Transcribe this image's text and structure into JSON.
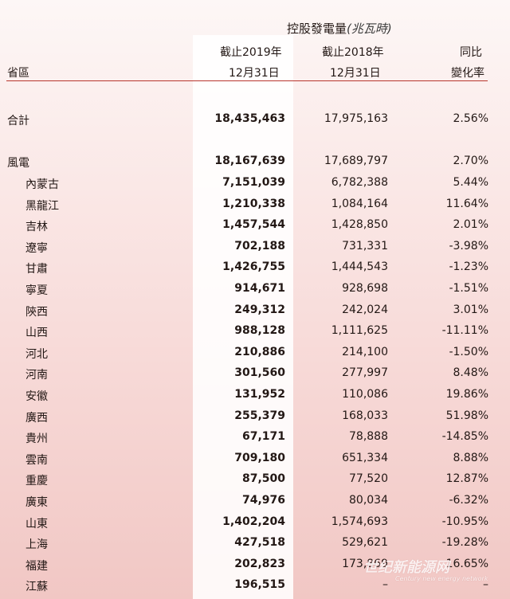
{
  "header": {
    "group_title": "控股發電量",
    "unit": "(兆瓦時)",
    "col_province": "省區",
    "col_2019_line1": "截止2019年",
    "col_2019_line2": "12月31日",
    "col_2018_line1": "截止2018年",
    "col_2018_line2": "12月31日",
    "col_change_line1": "同比",
    "col_change_line2": "變化率"
  },
  "total": {
    "label": "合計",
    "v2019": "18,435,463",
    "v2018": "17,975,163",
    "change": "2.56%"
  },
  "wind": {
    "label": "風電",
    "v2019": "18,167,639",
    "v2018": "17,689,797",
    "change": "2.70%"
  },
  "provinces": [
    {
      "label": "內蒙古",
      "v2019": "7,151,039",
      "v2018": "6,782,388",
      "change": "5.44%"
    },
    {
      "label": "黑龍江",
      "v2019": "1,210,338",
      "v2018": "1,084,164",
      "change": "11.64%"
    },
    {
      "label": "吉林",
      "v2019": "1,457,544",
      "v2018": "1,428,850",
      "change": "2.01%"
    },
    {
      "label": "遼寧",
      "v2019": "702,188",
      "v2018": "731,331",
      "change": "-3.98%"
    },
    {
      "label": "甘肅",
      "v2019": "1,426,755",
      "v2018": "1,444,543",
      "change": "-1.23%"
    },
    {
      "label": "寧夏",
      "v2019": "914,671",
      "v2018": "928,698",
      "change": "-1.51%"
    },
    {
      "label": "陝西",
      "v2019": "249,312",
      "v2018": "242,024",
      "change": "3.01%"
    },
    {
      "label": "山西",
      "v2019": "988,128",
      "v2018": "1,111,625",
      "change": "-11.11%"
    },
    {
      "label": "河北",
      "v2019": "210,886",
      "v2018": "214,100",
      "change": "-1.50%"
    },
    {
      "label": "河南",
      "v2019": "301,560",
      "v2018": "277,997",
      "change": "8.48%"
    },
    {
      "label": "安徽",
      "v2019": "131,952",
      "v2018": "110,086",
      "change": "19.86%"
    },
    {
      "label": "廣西",
      "v2019": "255,379",
      "v2018": "168,033",
      "change": "51.98%"
    },
    {
      "label": "貴州",
      "v2019": "67,171",
      "v2018": "78,888",
      "change": "-14.85%"
    },
    {
      "label": "雲南",
      "v2019": "709,180",
      "v2018": "651,334",
      "change": "8.88%"
    },
    {
      "label": "重慶",
      "v2019": "87,500",
      "v2018": "77,520",
      "change": "12.87%"
    },
    {
      "label": "廣東",
      "v2019": "74,976",
      "v2018": "80,034",
      "change": "-6.32%"
    },
    {
      "label": "山東",
      "v2019": "1,402,204",
      "v2018": "1,574,693",
      "change": "-10.95%"
    },
    {
      "label": "上海",
      "v2019": "427,518",
      "v2018": "529,621",
      "change": "-19.28%"
    },
    {
      "label": "福建",
      "v2019": "202,823",
      "v2018": "173,869",
      "change": "16.65%"
    },
    {
      "label": "江蘇",
      "v2019": "196,515",
      "v2018": "–",
      "change": "–"
    }
  ],
  "watermark": {
    "text": "世纪新能源网",
    "sub": "Century new energy network"
  }
}
